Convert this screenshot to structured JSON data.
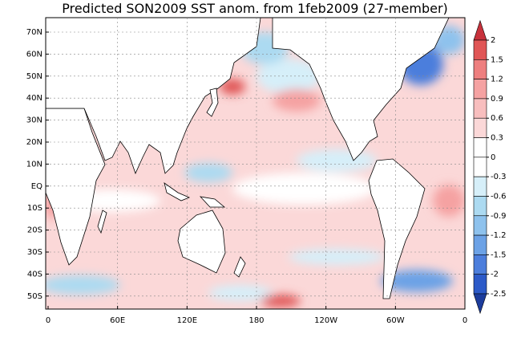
{
  "map": {
    "title": "Predicted SON2009 SST anom. from 1feb2009 (27-member)",
    "lat_labels": [
      "70N",
      "60N",
      "50N",
      "40N",
      "30N",
      "20N",
      "10N",
      "EQ",
      "10S",
      "20S",
      "30S",
      "40S",
      "50S"
    ],
    "lon_labels": [
      "0",
      "60E",
      "120E",
      "180",
      "120W",
      "60W",
      "0"
    ],
    "colorbar": {
      "levels": [
        2,
        1.5,
        1.2,
        0.9,
        0.6,
        0.3,
        0,
        -0.3,
        -0.6,
        -0.9,
        -1.2,
        -1.5,
        -2,
        -2.5
      ],
      "colors": [
        "#c8323c",
        "#e05656",
        "#ee7f7f",
        "#f5a2a2",
        "#f8bebe",
        "#fbd8d8",
        "#ffffff",
        "#ffffff",
        "#d6eff9",
        "#acdaf1",
        "#8ec2ed",
        "#6ca2e6",
        "#4c7edc",
        "#2c5ac8",
        "#1c3c9c"
      ]
    }
  }
}
